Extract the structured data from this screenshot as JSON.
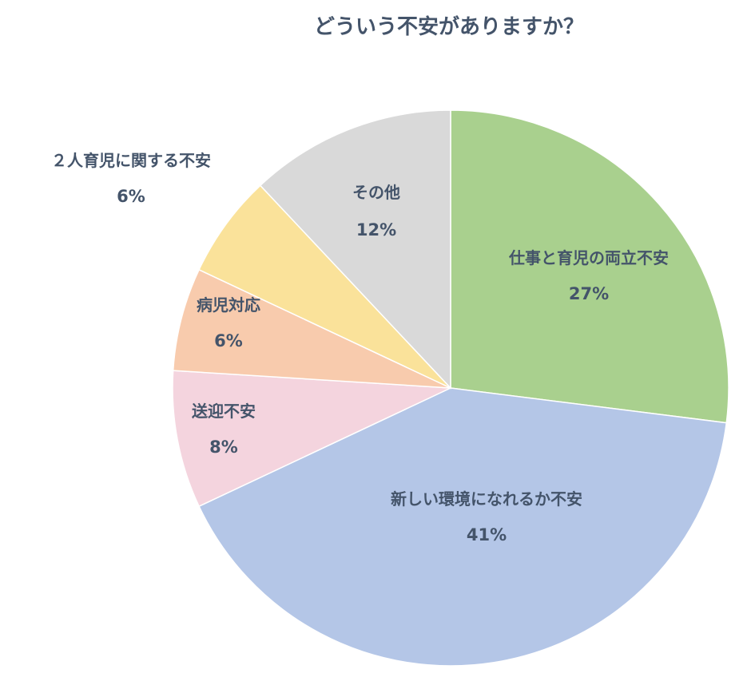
{
  "chart_data": {
    "type": "pie",
    "title": "どういう不安がありますか？",
    "start_angle_deg": 0,
    "direction": "clockwise",
    "slices": [
      {
        "label": "仕事と育児の両立不安",
        "value": 27,
        "value_label": "27%",
        "color": "#a9d08e"
      },
      {
        "label": "新しい環境になれるか不安",
        "value": 41,
        "value_label": "41%",
        "color": "#b4c6e7"
      },
      {
        "label": "送迎不安",
        "value": 8,
        "value_label": "8%",
        "color": "#f4d4de"
      },
      {
        "label": "病児対応",
        "value": 6,
        "value_label": "6%",
        "color": "#f8cbad"
      },
      {
        "label": "２人育児に関する不安",
        "value": 6,
        "value_label": "6%",
        "color": "#fae29a"
      },
      {
        "label": "その他",
        "value": 12,
        "value_label": "12%",
        "color": "#d9d9d9"
      }
    ],
    "legend": "none"
  }
}
